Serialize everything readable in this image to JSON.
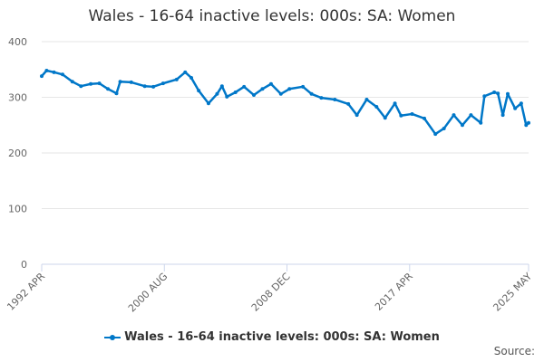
{
  "chart_data": {
    "type": "line",
    "title": "Wales - 16-64 inactive levels: 000s: SA: Women",
    "xlabel": "",
    "ylabel": "",
    "ylim": [
      0,
      400
    ],
    "yticks": [
      "0",
      "100",
      "200",
      "300",
      "400"
    ],
    "xticks": [
      "1992 APR",
      "2000 AUG",
      "2008 DEC",
      "2017 APR",
      "2025 MAY"
    ],
    "grid": true,
    "legend_position": "bottom",
    "color": "#0077c8",
    "series": [
      {
        "name": "Wales - 16-64 inactive levels: 000s: SA: Women",
        "x": [
          "1992 APR",
          "1992 AUG",
          "1993 FEB",
          "1993 SEP",
          "1994 MAY",
          "1994 DEC",
          "1995 AUG",
          "1996 MAR",
          "1996 OCT",
          "1997 MAY",
          "1997 AUG",
          "1998 MAY",
          "1999 APR",
          "1999 NOV",
          "2000 JUL",
          "2001 JUN",
          "2002 JAN",
          "2002 JUN",
          "2002 DEC",
          "2003 AUG",
          "2004 MAR",
          "2004 JUL",
          "2004 NOV",
          "2005 JUN",
          "2006 JAN",
          "2006 SEP",
          "2007 APR",
          "2007 NOV",
          "2008 JUL",
          "2009 FEB",
          "2010 JAN",
          "2010 AUG",
          "2011 APR",
          "2012 MAR",
          "2013 FEB",
          "2013 SEP",
          "2014 MAY",
          "2015 JAN",
          "2015 AUG",
          "2016 APR",
          "2016 SEP",
          "2017 JUN",
          "2018 APR",
          "2019 JAN",
          "2019 AUG",
          "2020 APR",
          "2020 NOV",
          "2021 JUN",
          "2022 FEB",
          "2022 MAY",
          "2023 JAN",
          "2023 APR",
          "2023 AUG",
          "2023 DEC",
          "2024 JUN",
          "2024 NOV",
          "2025 MAR",
          "2025 MAY"
        ],
        "values": [
          338,
          348,
          345,
          341,
          328,
          320,
          324,
          325,
          315,
          307,
          328,
          327,
          320,
          319,
          325,
          332,
          345,
          335,
          312,
          289,
          306,
          320,
          301,
          309,
          319,
          304,
          315,
          324,
          306,
          315,
          319,
          306,
          299,
          296,
          288,
          268,
          296,
          283,
          263,
          289,
          267,
          270,
          262,
          234,
          244,
          268,
          250,
          268,
          254,
          302,
          309,
          307,
          268,
          306,
          280,
          289,
          250,
          254
        ]
      }
    ]
  },
  "source_label": "Source:"
}
